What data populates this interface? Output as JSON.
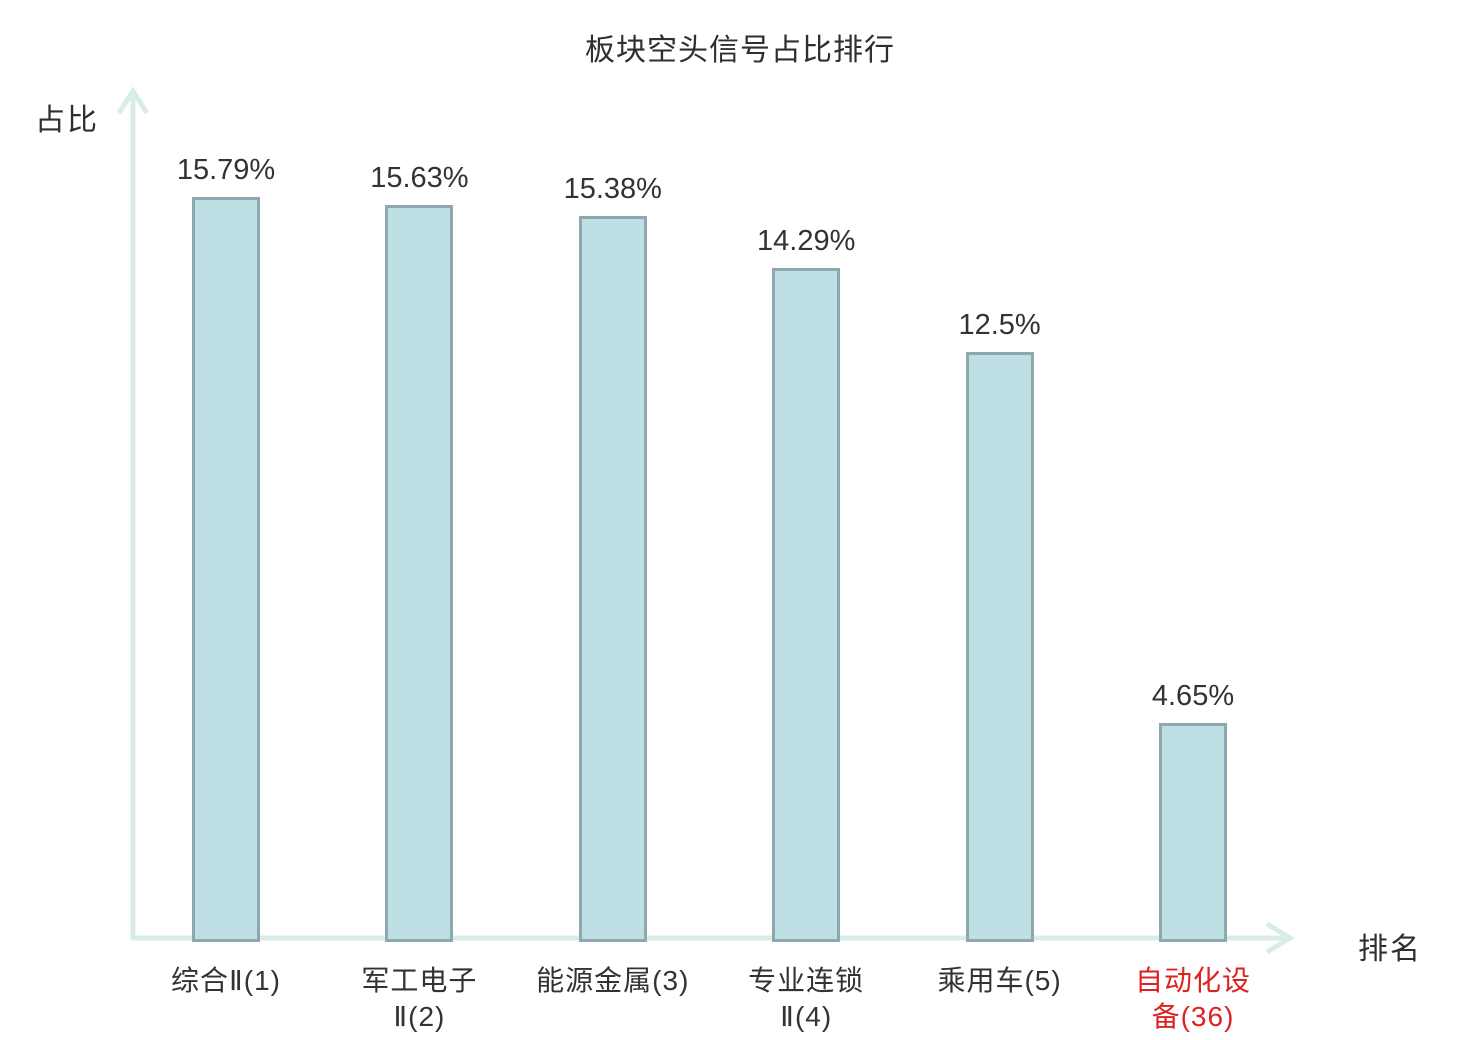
{
  "chart_data": {
    "type": "bar",
    "title": "板块空头信号占比排行",
    "ylabel": "占比",
    "xlabel": "排名",
    "categories": [
      "综合Ⅱ(1)",
      "军工电子Ⅱ(2)",
      "能源金属(3)",
      "专业连锁Ⅱ(4)",
      "乘用车(5)",
      "自动化设备(36)"
    ],
    "category_lines": [
      [
        "综合Ⅱ(1)"
      ],
      [
        "军工电子",
        "Ⅱ(2)"
      ],
      [
        "能源金属(3)"
      ],
      [
        "专业连锁",
        "Ⅱ(4)"
      ],
      [
        "乘用车(5)"
      ],
      [
        "自动化设",
        "备(36)"
      ]
    ],
    "values": [
      15.79,
      15.63,
      15.38,
      14.29,
      12.5,
      4.65
    ],
    "value_labels": [
      "15.79%",
      "15.63%",
      "15.38%",
      "14.29%",
      "12.5%",
      "4.65%"
    ],
    "highlight_index": 5,
    "ylim": [
      0,
      18
    ],
    "grid": false,
    "legend": null,
    "colors": {
      "bar_fill": "#bee0e4",
      "bar_border": "#8da8ae",
      "axis": "#d9ece7",
      "text": "#333333",
      "highlight_text": "#dd2222"
    }
  }
}
